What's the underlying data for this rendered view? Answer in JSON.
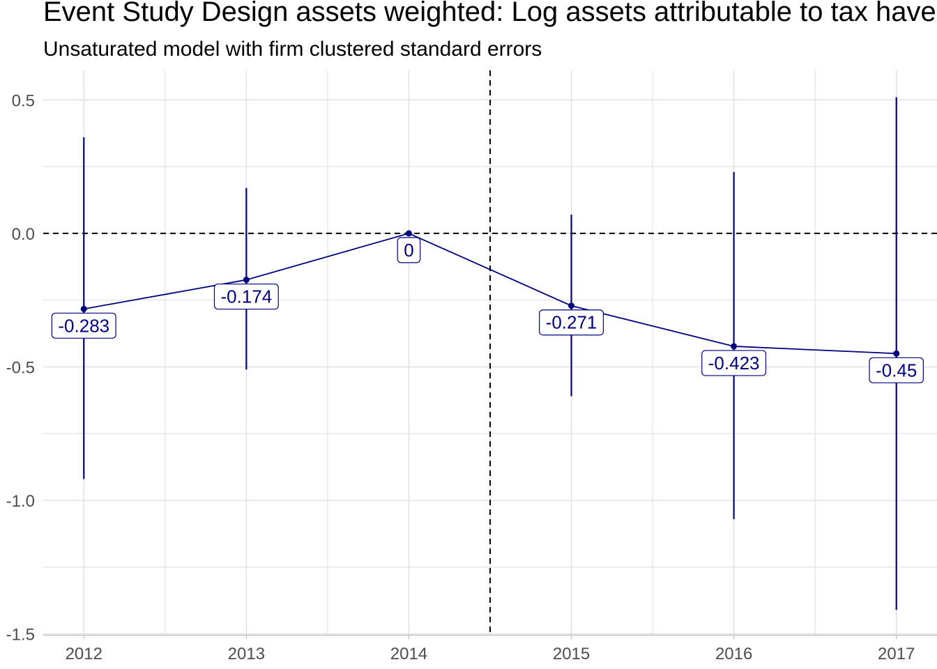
{
  "chart_data": {
    "type": "line",
    "title": "Event Study Design assets weighted: Log assets attributable to tax havens",
    "subtitle": "Unsaturated model with firm clustered standard errors",
    "xlabel": "",
    "ylabel": "",
    "x": [
      "2012",
      "2013",
      "2014",
      "2015",
      "2016",
      "2017"
    ],
    "estimates": [
      -0.283,
      -0.174,
      0,
      -0.271,
      -0.423,
      -0.45
    ],
    "ci_lower": [
      -0.92,
      -0.51,
      0,
      -0.61,
      -1.07,
      -1.41
    ],
    "ci_upper": [
      0.36,
      0.17,
      0,
      0.07,
      0.23,
      0.51
    ],
    "labels": [
      "-0.283",
      "-0.174",
      "0",
      "-0.271",
      "-0.423",
      "-0.45"
    ],
    "y_ticks": [
      0.5,
      0.0,
      -0.5,
      -1.0,
      -1.5
    ],
    "y_tick_labels": [
      "0.5",
      "0.0",
      "-0.5",
      "-1.0",
      "-1.5"
    ],
    "ylim": [
      -1.5,
      0.6
    ],
    "hline_y": 0,
    "vline_x": 2014.5,
    "grid": true,
    "legend": "none",
    "colors": {
      "series": "#00007f",
      "reference_line": "#000000",
      "grid": "#dedede",
      "tick_text": "#4d4d4d"
    }
  }
}
